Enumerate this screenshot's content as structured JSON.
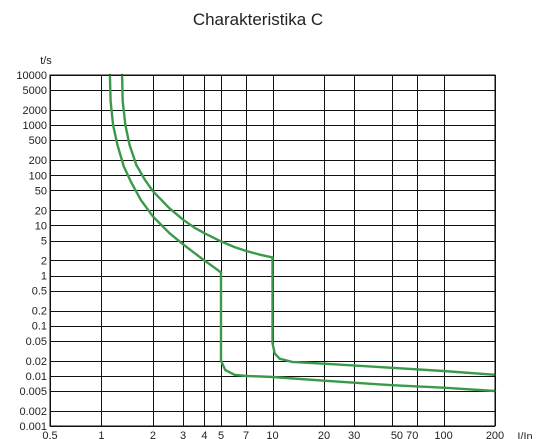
{
  "chart_data": {
    "type": "line",
    "title": "Charakteristika C",
    "xlabel": "I/In",
    "ylabel": "t/s",
    "x_scale": "log",
    "y_scale": "log",
    "xlim": [
      0.5,
      200
    ],
    "ylim": [
      0.001,
      10000
    ],
    "grid": true,
    "line_color": "#3a9a4a",
    "x_ticks": [
      0.5,
      1,
      2,
      3,
      4,
      5,
      7,
      10,
      20,
      30,
      50,
      70,
      100,
      200
    ],
    "x_tick_labels": [
      "0.5",
      "1",
      "2",
      "3",
      "4",
      "5",
      "7",
      "10",
      "20",
      "30",
      "50 70",
      "100",
      "200"
    ],
    "x_tick_label_positions": [
      0.5,
      1,
      2,
      3,
      4,
      5,
      7,
      10,
      20,
      30,
      59.2,
      100,
      200
    ],
    "y_ticks": [
      0.001,
      0.002,
      0.005,
      0.01,
      0.02,
      0.05,
      0.1,
      0.2,
      0.5,
      1,
      2,
      5,
      10,
      20,
      50,
      100,
      200,
      500,
      1000,
      2000,
      5000,
      10000
    ],
    "y_tick_labels": [
      "0.001",
      "0.002",
      "0.005",
      "0.01",
      "0.02",
      "0.05",
      "0.1",
      "0.2",
      "0.5",
      "1",
      "2",
      "5",
      "10",
      "20",
      "50",
      "100",
      "200",
      "500",
      "1000",
      "2000",
      "5000",
      "10000"
    ],
    "series": [
      {
        "values": [
          [
            1.12,
            10000
          ],
          [
            1.13,
            3000
          ],
          [
            1.17,
            1000
          ],
          [
            1.24,
            400
          ],
          [
            1.35,
            150
          ],
          [
            1.5,
            70
          ],
          [
            1.7,
            32
          ],
          [
            2,
            15
          ],
          [
            2.5,
            7
          ],
          [
            3,
            4.2
          ],
          [
            3.5,
            2.8
          ],
          [
            4,
            2.0
          ],
          [
            4.5,
            1.5
          ],
          [
            5,
            1.15
          ],
          [
            5,
            0.02
          ],
          [
            5.3,
            0.013
          ],
          [
            6,
            0.0105
          ],
          [
            7,
            0.01
          ],
          [
            10,
            0.0095
          ],
          [
            20,
            0.008
          ],
          [
            50,
            0.0065
          ],
          [
            100,
            0.0058
          ],
          [
            200,
            0.005
          ]
        ]
      },
      {
        "values": [
          [
            1.32,
            10000
          ],
          [
            1.33,
            3000
          ],
          [
            1.38,
            1000
          ],
          [
            1.46,
            400
          ],
          [
            1.6,
            160
          ],
          [
            1.8,
            80
          ],
          [
            2,
            48
          ],
          [
            2.5,
            22
          ],
          [
            3,
            13
          ],
          [
            3.5,
            9
          ],
          [
            4,
            7
          ],
          [
            5,
            4.8
          ],
          [
            6,
            3.7
          ],
          [
            7,
            3.1
          ],
          [
            8.5,
            2.6
          ],
          [
            10,
            2.3
          ],
          [
            10,
            0.045
          ],
          [
            10.3,
            0.028
          ],
          [
            11,
            0.022
          ],
          [
            13,
            0.019
          ],
          [
            20,
            0.0175
          ],
          [
            50,
            0.0145
          ],
          [
            100,
            0.0125
          ],
          [
            200,
            0.0105
          ]
        ]
      }
    ]
  }
}
